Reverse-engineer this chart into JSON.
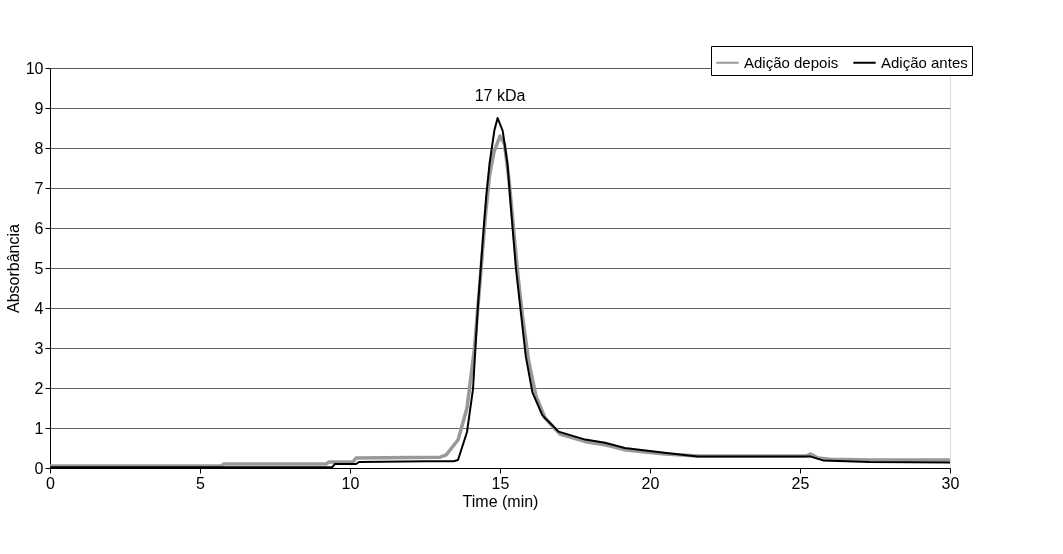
{
  "chart_data": {
    "type": "line",
    "xlabel": "Time (min)",
    "ylabel": "Absorbância",
    "xlim": [
      0,
      30
    ],
    "xticks": [
      0,
      5,
      10,
      15,
      20,
      25,
      30
    ],
    "ylim": [
      0,
      10
    ],
    "yticks": [
      0,
      1,
      2,
      3,
      4,
      5,
      6,
      7,
      8,
      9,
      10
    ],
    "grid": "y",
    "legend": "top right",
    "marker": "none",
    "line_style": "solid",
    "annotations": [
      {
        "text": "17 kDa",
        "x": 15,
        "y": 8.75
      }
    ],
    "series": [
      {
        "name": "Adição depois",
        "color": "#999999",
        "x": [
          0,
          5.7,
          5.8,
          9.2,
          9.3,
          10.1,
          10.2,
          13.0,
          13.2,
          13.6,
          13.9,
          14.15,
          14.35,
          14.5,
          14.65,
          14.8,
          15.0,
          15.15,
          15.3,
          15.45,
          15.6,
          15.75,
          15.95,
          16.2,
          16.5,
          17.0,
          17.9,
          18.5,
          19.2,
          20.5,
          21.6,
          25.2,
          25.35,
          25.6,
          26.0,
          27.3,
          30
        ],
        "values": [
          0.05,
          0.05,
          0.1,
          0.1,
          0.15,
          0.15,
          0.25,
          0.27,
          0.32,
          0.7,
          1.5,
          3.0,
          4.8,
          6.2,
          7.3,
          7.9,
          8.3,
          8.1,
          7.2,
          6.0,
          4.8,
          3.8,
          2.7,
          1.8,
          1.25,
          0.85,
          0.65,
          0.58,
          0.45,
          0.35,
          0.3,
          0.3,
          0.35,
          0.25,
          0.22,
          0.2,
          0.2
        ]
      },
      {
        "name": "Adição antes",
        "color": "#000000",
        "x": [
          0,
          9.4,
          9.5,
          10.2,
          10.3,
          12.6,
          13.45,
          13.6,
          13.9,
          14.1,
          14.26,
          14.43,
          14.54,
          14.65,
          14.81,
          14.92,
          15.09,
          15.25,
          15.36,
          15.53,
          15.69,
          15.86,
          16.08,
          16.41,
          16.95,
          17.84,
          18.5,
          19.16,
          20.48,
          21.58,
          25.33,
          25.77,
          27.3,
          30
        ],
        "values": [
          0.02,
          0.02,
          0.1,
          0.1,
          0.15,
          0.17,
          0.17,
          0.2,
          0.9,
          1.97,
          4.0,
          5.73,
          6.79,
          7.6,
          8.43,
          8.75,
          8.43,
          7.6,
          6.54,
          5.0,
          3.93,
          2.79,
          1.89,
          1.32,
          0.91,
          0.71,
          0.63,
          0.5,
          0.38,
          0.29,
          0.29,
          0.19,
          0.15,
          0.14
        ]
      }
    ]
  }
}
